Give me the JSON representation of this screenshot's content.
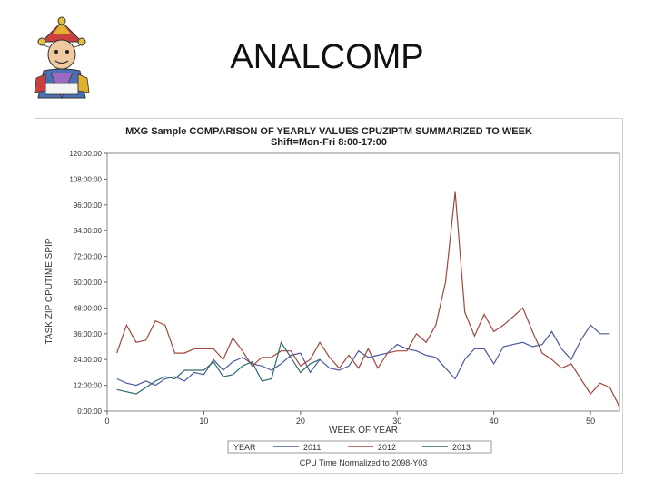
{
  "slide": {
    "title": "ANALCOMP"
  },
  "logo": {
    "icon": "jester-mascot-icon"
  },
  "chart_data": {
    "type": "line",
    "title": "MXG Sample COMPARISON OF YEARLY VALUES CPUZIPTM SUMMARIZED TO WEEK",
    "subtitle": "Shift=Mon-Fri 8:00-17:00",
    "xlabel": "WEEK OF YEAR",
    "ylabel": "TASK ZIP CPUTIME SPIP",
    "footnote": "CPU Time Normalized to 2098-Y03",
    "legend_title": "YEAR",
    "legend_position": "bottom",
    "xlim": [
      0,
      53
    ],
    "xticks": [
      0,
      10,
      20,
      30,
      40,
      50
    ],
    "xtick_labels": [
      "0",
      "10",
      "20",
      "30",
      "40",
      "50"
    ],
    "ylim": [
      0,
      120
    ],
    "yticks": [
      0,
      12,
      24,
      36,
      48,
      60,
      72,
      84,
      96,
      108,
      120
    ],
    "ytick_labels": [
      "0:00:00",
      "12:00:00",
      "24:00:00",
      "36:00:00",
      "48:00:00",
      "60:00:00",
      "72:00:00",
      "84:00:00",
      "96:00:00",
      "108:00:00",
      "120:00:00"
    ],
    "grid": false,
    "series": [
      {
        "name": "2011",
        "color": "#4a5a9a",
        "x": [
          1,
          2,
          3,
          4,
          5,
          6,
          7,
          8,
          9,
          10,
          11,
          12,
          13,
          14,
          15,
          16,
          17,
          18,
          19,
          20,
          21,
          22,
          23,
          24,
          25,
          26,
          27,
          28,
          29,
          30,
          31,
          32,
          33,
          34,
          35,
          36,
          37,
          38,
          39,
          40,
          41,
          42,
          43,
          44,
          45,
          46,
          47,
          48,
          49,
          50,
          51,
          52
        ],
        "values": [
          15,
          13,
          12,
          14,
          12,
          15,
          16,
          14,
          18,
          17,
          24,
          19,
          23,
          25,
          22,
          21,
          19,
          22,
          26,
          27,
          18,
          24,
          20,
          19,
          21,
          28,
          25,
          26,
          27,
          31,
          29,
          28,
          26,
          25,
          20,
          15,
          24,
          29,
          29,
          22,
          30,
          31,
          32,
          30,
          31,
          37,
          29,
          24,
          33,
          40,
          36,
          36
        ]
      },
      {
        "name": "2012",
        "color": "#a0473c",
        "x": [
          1,
          2,
          3,
          4,
          5,
          6,
          7,
          8,
          9,
          10,
          11,
          12,
          13,
          14,
          15,
          16,
          17,
          18,
          19,
          20,
          21,
          22,
          23,
          24,
          25,
          26,
          27,
          28,
          29,
          30,
          31,
          32,
          33,
          34,
          35,
          36,
          37,
          38,
          39,
          40,
          41,
          42,
          43,
          44,
          45,
          46,
          47,
          48,
          49,
          50,
          51,
          52,
          53
        ],
        "values": [
          27,
          40,
          32,
          33,
          42,
          40,
          27,
          27,
          29,
          29,
          29,
          24,
          34,
          28,
          21,
          25,
          25,
          28,
          28,
          21,
          24,
          32,
          25,
          20,
          26,
          20,
          29,
          20,
          27,
          28,
          28,
          36,
          32,
          40,
          60,
          102,
          46,
          35,
          45,
          37,
          40,
          44,
          48,
          37,
          27,
          24,
          20,
          22,
          15,
          8,
          13,
          11,
          2
        ]
      },
      {
        "name": "2013",
        "color": "#2e6b6b",
        "x": [
          1,
          2,
          3,
          4,
          5,
          6,
          7,
          8,
          9,
          10,
          11,
          12,
          13,
          14,
          15,
          16,
          17,
          18,
          19,
          20,
          21,
          22
        ],
        "values": [
          10,
          9,
          8,
          11,
          14,
          16,
          15,
          19,
          19,
          19,
          23,
          16,
          17,
          21,
          23,
          14,
          15,
          32,
          25,
          18,
          22,
          24
        ]
      }
    ]
  }
}
